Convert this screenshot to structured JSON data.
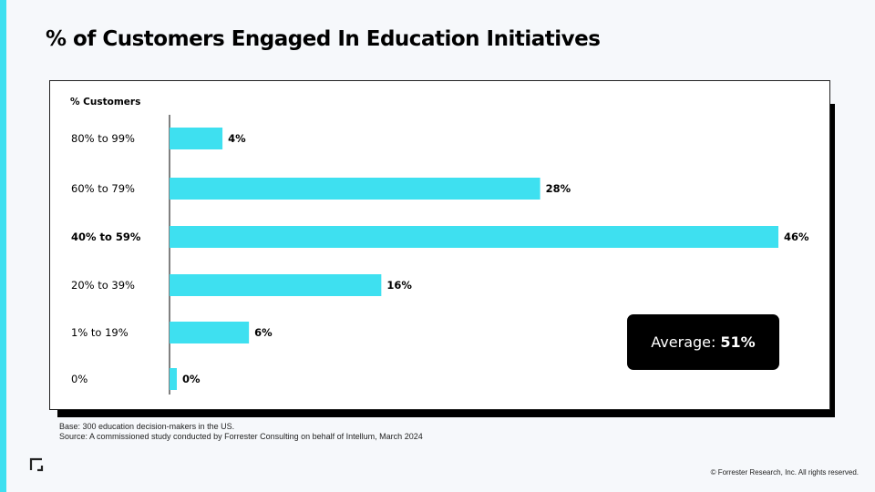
{
  "title": "% of Customers Engaged In Education Initiatives",
  "colors": {
    "accent": "#3ee0f0",
    "bar": "#3ee0f0",
    "shadow": "#000000"
  },
  "chart_data": {
    "type": "bar",
    "orientation": "horizontal",
    "ylabel": "% Customers",
    "categories": [
      "80% to 99%",
      "60% to 79%",
      "40% to 59%",
      "20% to 39%",
      "1% to 19%",
      "0%"
    ],
    "values": [
      4,
      28,
      46,
      16,
      6,
      0
    ],
    "data_labels": [
      "4%",
      "28%",
      "46%",
      "16%",
      "6%",
      "0%"
    ],
    "highlighted_category": "40% to 59%",
    "xlim": [
      0,
      46
    ],
    "grid": false
  },
  "average": {
    "label": "Average:",
    "value": "51%"
  },
  "footnote": {
    "base": "Base: 300 education decision-makers in the US.",
    "source": "Source: A commissioned study conducted by Forrester Consulting on behalf of Intellum, March 2024"
  },
  "icon": "corner-bracket-icon",
  "copyright": "© Forrester Research, Inc. All rights reserved."
}
